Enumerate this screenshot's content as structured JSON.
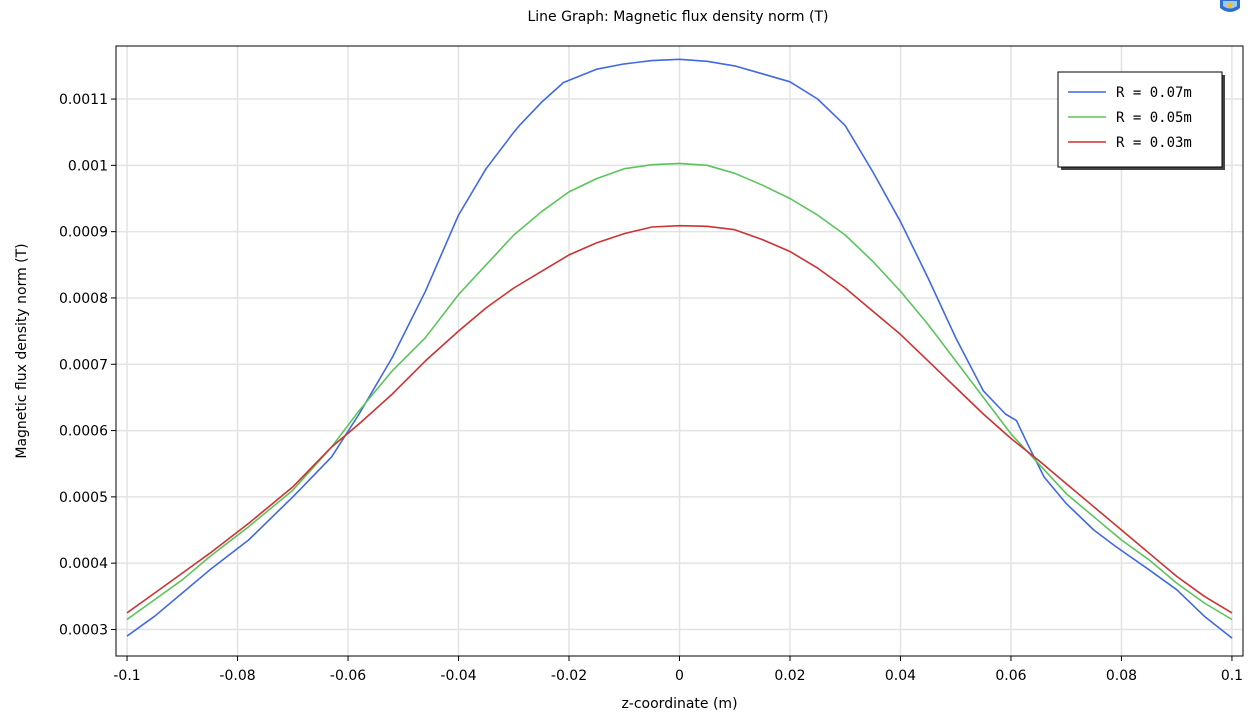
{
  "chart_data": {
    "type": "line",
    "title": "Line Graph: Magnetic flux density norm (T)",
    "xlabel": "z-coordinate (m)",
    "ylabel": "Magnetic flux density norm (T)",
    "xlim": [
      -0.102,
      0.102
    ],
    "ylim": [
      0.00026,
      0.00118
    ],
    "x_ticks": [
      -0.1,
      -0.08,
      -0.06,
      -0.04,
      -0.02,
      0,
      0.02,
      0.04,
      0.06,
      0.08,
      0.1
    ],
    "x_tick_labels": [
      "-0.1",
      "-0.08",
      "-0.06",
      "-0.04",
      "-0.02",
      "0",
      "0.02",
      "0.04",
      "0.06",
      "0.08",
      "0.1"
    ],
    "y_ticks": [
      0.0003,
      0.0004,
      0.0005,
      0.0006,
      0.0007,
      0.0008,
      0.0009,
      0.001,
      0.0011
    ],
    "y_tick_labels": [
      "0.0003",
      "0.0004",
      "0.0005",
      "0.0006",
      "0.0007",
      "0.0008",
      "0.0009",
      "0.001",
      "0.0011"
    ],
    "grid": true,
    "legend_position": "top-right",
    "series": [
      {
        "name": "R = 0.07m",
        "color": "#4169e1",
        "x": [
          -0.1,
          -0.095,
          -0.09,
          -0.085,
          -0.078,
          -0.07,
          -0.063,
          -0.058,
          -0.052,
          -0.046,
          -0.04,
          -0.035,
          -0.03,
          -0.029,
          -0.025,
          -0.021,
          -0.015,
          -0.01,
          -0.005,
          0,
          0.005,
          0.01,
          0.015,
          0.02,
          0.025,
          0.03,
          0.035,
          0.04,
          0.045,
          0.05,
          0.055,
          0.059,
          0.061,
          0.063,
          0.066,
          0.07,
          0.075,
          0.079,
          0.085,
          0.09,
          0.095,
          0.1
        ],
        "y": [
          0.00029,
          0.00032,
          0.000355,
          0.00039,
          0.000435,
          0.0005,
          0.00056,
          0.000625,
          0.00071,
          0.00081,
          0.000925,
          0.000995,
          0.00105,
          0.00106,
          0.001095,
          0.001125,
          0.001145,
          0.001153,
          0.001158,
          0.00116,
          0.001157,
          0.00115,
          0.001138,
          0.001126,
          0.0011,
          0.00106,
          0.00099,
          0.000915,
          0.00083,
          0.00074,
          0.00066,
          0.000625,
          0.000615,
          0.00058,
          0.00053,
          0.00049,
          0.00045,
          0.000425,
          0.00039,
          0.00036,
          0.00032,
          0.000287
        ]
      },
      {
        "name": "R = 0.05m",
        "color": "#5cc45c",
        "x": [
          -0.1,
          -0.095,
          -0.09,
          -0.085,
          -0.078,
          -0.07,
          -0.063,
          -0.058,
          -0.052,
          -0.046,
          -0.04,
          -0.035,
          -0.03,
          -0.025,
          -0.02,
          -0.015,
          -0.01,
          -0.005,
          0,
          0.005,
          0.01,
          0.015,
          0.02,
          0.025,
          0.03,
          0.035,
          0.04,
          0.045,
          0.05,
          0.055,
          0.06,
          0.065,
          0.07,
          0.075,
          0.08,
          0.085,
          0.09,
          0.095,
          0.1
        ],
        "y": [
          0.000315,
          0.000345,
          0.000375,
          0.00041,
          0.000455,
          0.00051,
          0.000575,
          0.00063,
          0.00069,
          0.00074,
          0.000805,
          0.00085,
          0.000895,
          0.00093,
          0.00096,
          0.00098,
          0.000995,
          0.001001,
          0.001003,
          0.001,
          0.000988,
          0.00097,
          0.00095,
          0.000925,
          0.000895,
          0.000855,
          0.00081,
          0.00076,
          0.000705,
          0.00065,
          0.000595,
          0.00055,
          0.000505,
          0.00047,
          0.000435,
          0.000405,
          0.00037,
          0.00034,
          0.000315
        ]
      },
      {
        "name": "R = 0.03m",
        "color": "#cc3333",
        "x": [
          -0.1,
          -0.095,
          -0.09,
          -0.085,
          -0.078,
          -0.07,
          -0.063,
          -0.058,
          -0.052,
          -0.046,
          -0.04,
          -0.035,
          -0.03,
          -0.025,
          -0.02,
          -0.015,
          -0.01,
          -0.005,
          0,
          0.005,
          0.01,
          0.015,
          0.02,
          0.025,
          0.03,
          0.035,
          0.04,
          0.045,
          0.05,
          0.055,
          0.06,
          0.065,
          0.07,
          0.075,
          0.08,
          0.085,
          0.09,
          0.095,
          0.1
        ],
        "y": [
          0.000325,
          0.000355,
          0.000385,
          0.000415,
          0.00046,
          0.000515,
          0.000575,
          0.00061,
          0.000655,
          0.000705,
          0.00075,
          0.000785,
          0.000815,
          0.00084,
          0.000865,
          0.000883,
          0.000897,
          0.000907,
          0.000909,
          0.000908,
          0.000903,
          0.000888,
          0.00087,
          0.000845,
          0.000815,
          0.00078,
          0.000745,
          0.000705,
          0.000665,
          0.000625,
          0.000588,
          0.000555,
          0.00052,
          0.000485,
          0.00045,
          0.000415,
          0.00038,
          0.00035,
          0.000325
        ]
      }
    ]
  }
}
